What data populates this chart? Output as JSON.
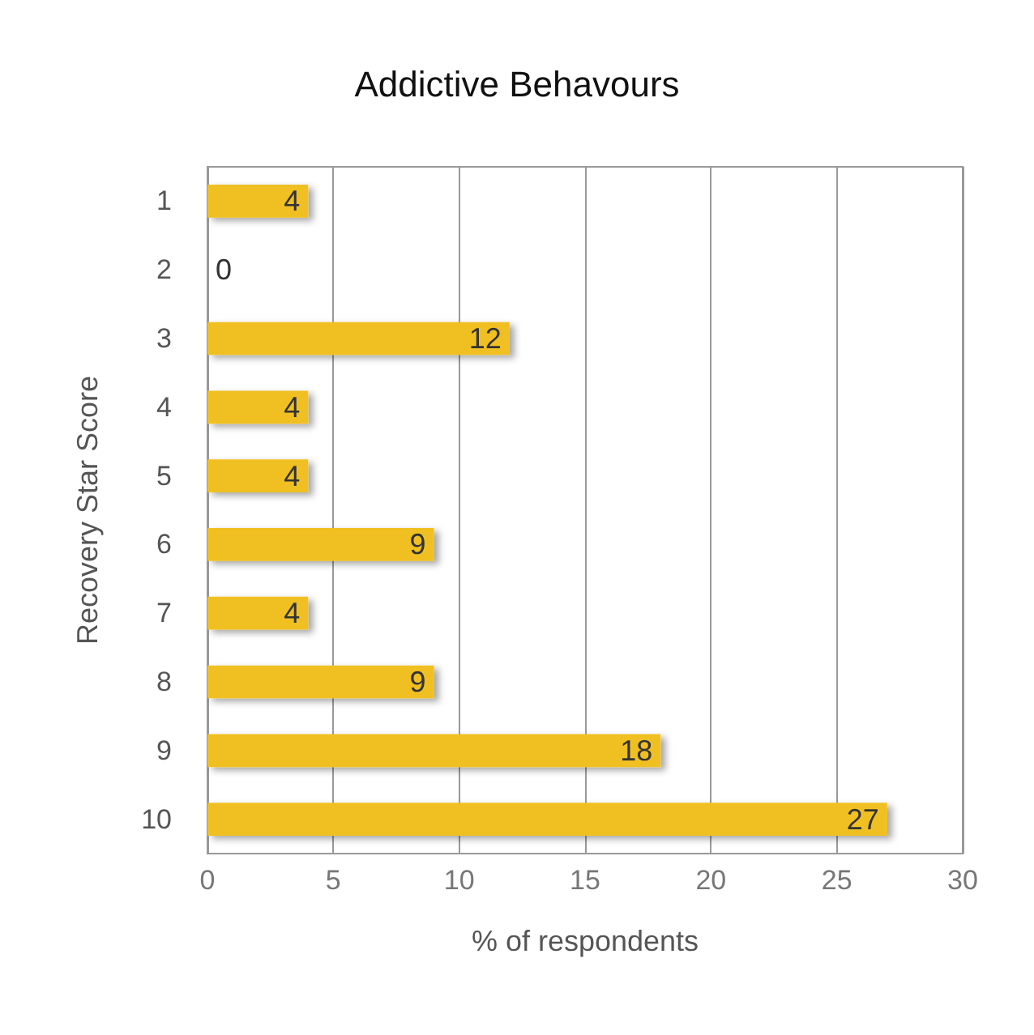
{
  "chart_data": {
    "type": "bar",
    "orientation": "horizontal",
    "title": "Addictive Behavours",
    "xlabel": "% of respondents",
    "ylabel": "Recovery Star Score",
    "categories": [
      "1",
      "2",
      "3",
      "4",
      "5",
      "6",
      "7",
      "8",
      "9",
      "10"
    ],
    "values": [
      4,
      0,
      12,
      4,
      4,
      9,
      4,
      9,
      18,
      27
    ],
    "color": "#f0c020",
    "xlim": [
      0,
      30
    ],
    "xticks": [
      0,
      5,
      10,
      15,
      20,
      25,
      30
    ],
    "grid": "x",
    "data_labels": true
  }
}
